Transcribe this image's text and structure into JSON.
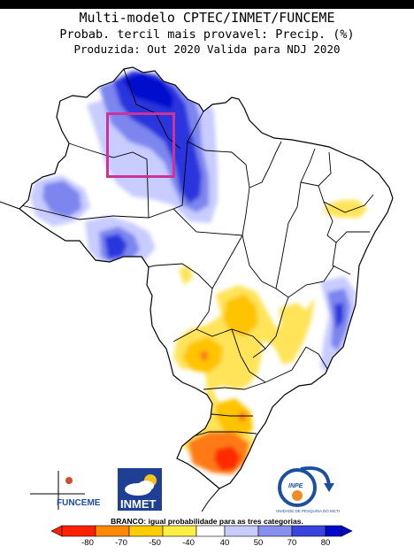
{
  "header": {
    "title": "Multi-modelo CPTEC/INMET/FUNCEME",
    "subtitle": "Probab. tercil mais provavel: Precip. (%)",
    "validity": "Produzida: Out 2020  Valida para NDJ 2020"
  },
  "logos": {
    "funceme": "FUNCEME",
    "inmet": "INMET",
    "inpe": "INPE",
    "inpe_caption": "UNIDADE DE PESQUISA DO MCTI"
  },
  "legend": {
    "note": "BRANCO: igual probabilidade para as tres categorias.",
    "ticks": [
      "-80",
      "-70",
      "-50",
      "-40",
      "40",
      "50",
      "70",
      "80"
    ],
    "colors": [
      "#ff2200",
      "#ff8800",
      "#ffcc00",
      "#ffee44",
      "#ffffff",
      "#c8ccff",
      "#8890ee",
      "#3a44dd",
      "#0008cc"
    ]
  },
  "map": {
    "region": "Brasil",
    "highlight_color": "#cc3399"
  }
}
